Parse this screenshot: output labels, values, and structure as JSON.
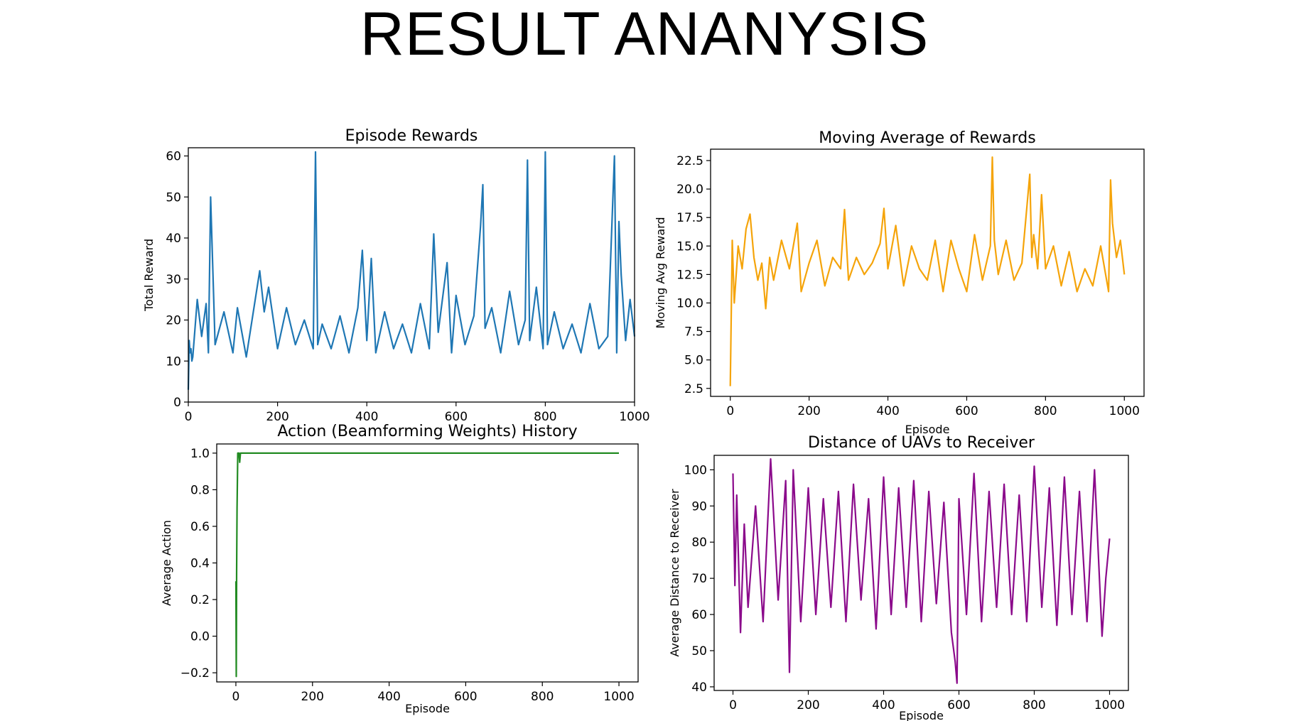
{
  "slide": {
    "title": "RESULT ANANYSIS"
  },
  "colors": {
    "episode_rewards": "#1f77b4",
    "moving_average": "#f5a40a",
    "action_history": "#228b22",
    "distance": "#8b0a8b"
  },
  "chart_data": [
    {
      "id": "episode_rewards",
      "type": "line",
      "title": "Episode Rewards",
      "xlabel": "",
      "ylabel": "Total Reward",
      "xlim": [
        0,
        1000
      ],
      "ylim": [
        0,
        62
      ],
      "xticks": [
        0,
        200,
        400,
        600,
        800,
        1000
      ],
      "xtick_labels": [
        "0",
        "200",
        "400",
        "600",
        "800",
        "1000"
      ],
      "yticks": [
        0,
        10,
        20,
        30,
        40,
        50,
        60
      ],
      "ytick_labels": [
        "0",
        "10",
        "20",
        "30",
        "40",
        "50",
        "60"
      ],
      "grid": false,
      "series": [
        {
          "x": [
            0,
            2,
            4,
            6,
            8,
            10,
            20,
            30,
            40,
            45,
            50,
            60,
            80,
            100,
            110,
            130,
            150,
            160,
            170,
            180,
            200,
            220,
            240,
            260,
            280,
            285,
            290,
            300,
            320,
            340,
            360,
            380,
            390,
            400,
            410,
            420,
            440,
            460,
            480,
            500,
            520,
            540,
            550,
            560,
            580,
            590,
            600,
            620,
            640,
            655,
            660,
            665,
            680,
            700,
            720,
            740,
            755,
            760,
            765,
            780,
            795,
            800,
            805,
            820,
            840,
            860,
            880,
            900,
            920,
            940,
            955,
            960,
            965,
            970,
            980,
            990,
            1000
          ],
          "y": [
            3,
            15,
            12,
            13,
            10,
            11,
            25,
            16,
            24,
            12,
            50,
            14,
            22,
            12,
            23,
            11,
            25,
            32,
            22,
            28,
            13,
            23,
            14,
            20,
            13,
            61,
            14,
            19,
            13,
            21,
            12,
            23,
            37,
            15,
            35,
            12,
            22,
            13,
            19,
            12,
            24,
            13,
            41,
            17,
            34,
            12,
            26,
            14,
            21,
            43,
            53,
            18,
            23,
            12,
            27,
            14,
            20,
            59,
            15,
            28,
            13,
            61,
            14,
            22,
            13,
            19,
            12,
            24,
            13,
            16,
            60,
            12,
            44,
            31,
            15,
            25,
            16
          ]
        }
      ]
    },
    {
      "id": "moving_average",
      "type": "line",
      "title": "Moving Average of Rewards",
      "xlabel": "Episode",
      "ylabel": "Moving Avg Reward",
      "xlim": [
        -50,
        1050
      ],
      "ylim": [
        1.8,
        23.5
      ],
      "xticks": [
        0,
        200,
        400,
        600,
        800,
        1000
      ],
      "xtick_labels": [
        "0",
        "200",
        "400",
        "600",
        "800",
        "1000"
      ],
      "yticks": [
        2.5,
        5.0,
        7.5,
        10.0,
        12.5,
        15.0,
        17.5,
        20.0,
        22.5
      ],
      "ytick_labels": [
        "2.5",
        "5.0",
        "7.5",
        "10.0",
        "12.5",
        "15.0",
        "17.5",
        "20.0",
        "22.5"
      ],
      "grid": false,
      "series": [
        {
          "x": [
            0,
            5,
            10,
            20,
            30,
            40,
            50,
            60,
            70,
            80,
            90,
            100,
            110,
            130,
            150,
            170,
            180,
            200,
            220,
            240,
            260,
            280,
            290,
            300,
            320,
            340,
            360,
            380,
            390,
            400,
            420,
            440,
            460,
            480,
            500,
            520,
            540,
            560,
            580,
            600,
            620,
            640,
            660,
            665,
            670,
            680,
            700,
            720,
            740,
            760,
            765,
            770,
            780,
            790,
            800,
            820,
            840,
            860,
            880,
            900,
            920,
            940,
            960,
            965,
            970,
            980,
            990,
            1000
          ],
          "y": [
            2.7,
            15.5,
            10,
            15,
            13,
            16.5,
            17.8,
            14,
            12,
            13.5,
            9.5,
            14,
            12,
            15.5,
            13,
            17,
            11,
            13.5,
            15.5,
            11.5,
            14,
            13,
            18.2,
            12,
            14,
            12.5,
            13.5,
            15.2,
            18.3,
            13,
            16.8,
            11.5,
            15,
            13,
            12,
            15.5,
            11,
            15.5,
            13,
            11,
            16,
            12,
            15,
            22.8,
            15.5,
            12.5,
            15.5,
            12,
            13.5,
            21.3,
            14,
            16,
            13,
            19.5,
            13,
            15,
            11.5,
            14.5,
            11,
            13,
            11.5,
            15,
            11,
            20.8,
            17,
            14,
            15.5,
            12.5
          ]
        }
      ]
    },
    {
      "id": "action_history",
      "type": "line",
      "title": "Action (Beamforming Weights) History",
      "xlabel": "Episode",
      "ylabel": "Average Action",
      "xlim": [
        -50,
        1050
      ],
      "ylim": [
        -0.25,
        1.05
      ],
      "xticks": [
        0,
        200,
        400,
        600,
        800,
        1000
      ],
      "xtick_labels": [
        "0",
        "200",
        "400",
        "600",
        "800",
        "1000"
      ],
      "yticks": [
        -0.2,
        0.0,
        0.2,
        0.4,
        0.6,
        0.8,
        1.0
      ],
      "ytick_labels": [
        "−0.2",
        "0.0",
        "0.2",
        "0.4",
        "0.6",
        "0.8",
        "1.0"
      ],
      "grid": false,
      "series": [
        {
          "x": [
            0,
            1,
            2,
            3,
            5,
            8,
            10,
            12,
            15,
            30,
            100,
            500,
            1000
          ],
          "y": [
            0.3,
            -0.22,
            0.35,
            0.7,
            1.0,
            1.0,
            0.95,
            1.0,
            1.0,
            1.0,
            1.0,
            1.0,
            1.0
          ]
        }
      ]
    },
    {
      "id": "distance",
      "type": "line",
      "title": "Distance of UAVs to Receiver",
      "xlabel": "Episode",
      "ylabel": "Average Distance to Receiver",
      "xlim": [
        -50,
        1050
      ],
      "ylim": [
        39,
        104
      ],
      "xticks": [
        0,
        200,
        400,
        600,
        800,
        1000
      ],
      "xtick_labels": [
        "0",
        "200",
        "400",
        "600",
        "800",
        "1000"
      ],
      "yticks": [
        40,
        50,
        60,
        70,
        80,
        90,
        100
      ],
      "ytick_labels": [
        "40",
        "50",
        "60",
        "70",
        "80",
        "90",
        "100"
      ],
      "grid": false,
      "series": [
        {
          "x": [
            0,
            5,
            10,
            20,
            30,
            40,
            60,
            80,
            100,
            120,
            140,
            150,
            160,
            180,
            200,
            220,
            240,
            260,
            280,
            300,
            320,
            340,
            360,
            380,
            400,
            420,
            440,
            460,
            480,
            500,
            520,
            540,
            560,
            580,
            590,
            595,
            600,
            620,
            640,
            660,
            680,
            700,
            720,
            740,
            760,
            780,
            800,
            820,
            840,
            860,
            880,
            900,
            920,
            940,
            960,
            980,
            990,
            1000
          ],
          "y": [
            99,
            68,
            93,
            55,
            85,
            62,
            90,
            58,
            103,
            64,
            97,
            44,
            100,
            58,
            95,
            60,
            92,
            62,
            94,
            58,
            96,
            64,
            92,
            56,
            98,
            60,
            95,
            62,
            97,
            58,
            94,
            63,
            91,
            55,
            47,
            41,
            92,
            60,
            99,
            58,
            94,
            62,
            96,
            60,
            93,
            58,
            101,
            62,
            95,
            57,
            98,
            60,
            94,
            58,
            100,
            54,
            70,
            81
          ]
        }
      ]
    }
  ]
}
